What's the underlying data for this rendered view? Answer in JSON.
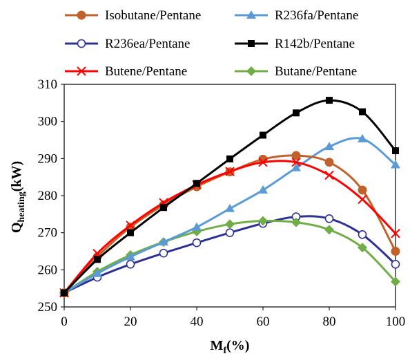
{
  "chart_data": {
    "type": "line",
    "x": [
      0,
      10,
      20,
      30,
      40,
      50,
      60,
      70,
      80,
      90,
      100
    ],
    "xlim": [
      0,
      100
    ],
    "ylim": [
      250,
      310
    ],
    "xticks": [
      0,
      20,
      40,
      60,
      80,
      100
    ],
    "yticks": [
      250,
      260,
      270,
      280,
      290,
      300,
      310
    ],
    "xlabel": {
      "main": "M",
      "sub": "f",
      "rest": "(%)"
    },
    "ylabel": {
      "main": "Q",
      "sub": "heating",
      "rest": "(kW)"
    },
    "grid": false,
    "legend_position": "top",
    "series": [
      {
        "name": "Isobutane/Pentane",
        "color": "#c0622b",
        "marker": "circle-filled",
        "values": [
          253.8,
          263.5,
          271.5,
          277.5,
          282.4,
          286.4,
          289.8,
          290.8,
          289.0,
          281.5,
          265.0
        ]
      },
      {
        "name": "R236fa/Pentane",
        "color": "#5b9bd5",
        "marker": "triangle",
        "values": [
          253.8,
          259.0,
          263.5,
          267.5,
          271.5,
          276.5,
          281.5,
          287.5,
          293.2,
          295.3,
          288.3
        ]
      },
      {
        "name": "R236ea/Pentane",
        "color": "#2e3192",
        "marker": "circle-open",
        "values": [
          253.8,
          258.0,
          261.5,
          264.5,
          267.3,
          270.0,
          272.5,
          274.3,
          273.8,
          269.5,
          261.5
        ]
      },
      {
        "name": "R142b/Pentane",
        "color": "#000000",
        "marker": "square",
        "values": [
          253.8,
          262.8,
          270.0,
          276.8,
          283.3,
          289.9,
          296.3,
          302.3,
          305.7,
          302.6,
          292.1
        ]
      },
      {
        "name": "Butene/Pentane",
        "color": "#ff0000",
        "marker": "x",
        "values": [
          253.8,
          264.4,
          272.0,
          278.1,
          282.9,
          286.5,
          289.0,
          289.0,
          285.5,
          279.0,
          269.8
        ]
      },
      {
        "name": "Butane/Pentane",
        "color": "#70ad47",
        "marker": "diamond",
        "values": [
          253.8,
          259.5,
          264.0,
          267.5,
          270.3,
          272.3,
          273.2,
          272.8,
          270.8,
          266.0,
          256.8
        ]
      }
    ]
  }
}
